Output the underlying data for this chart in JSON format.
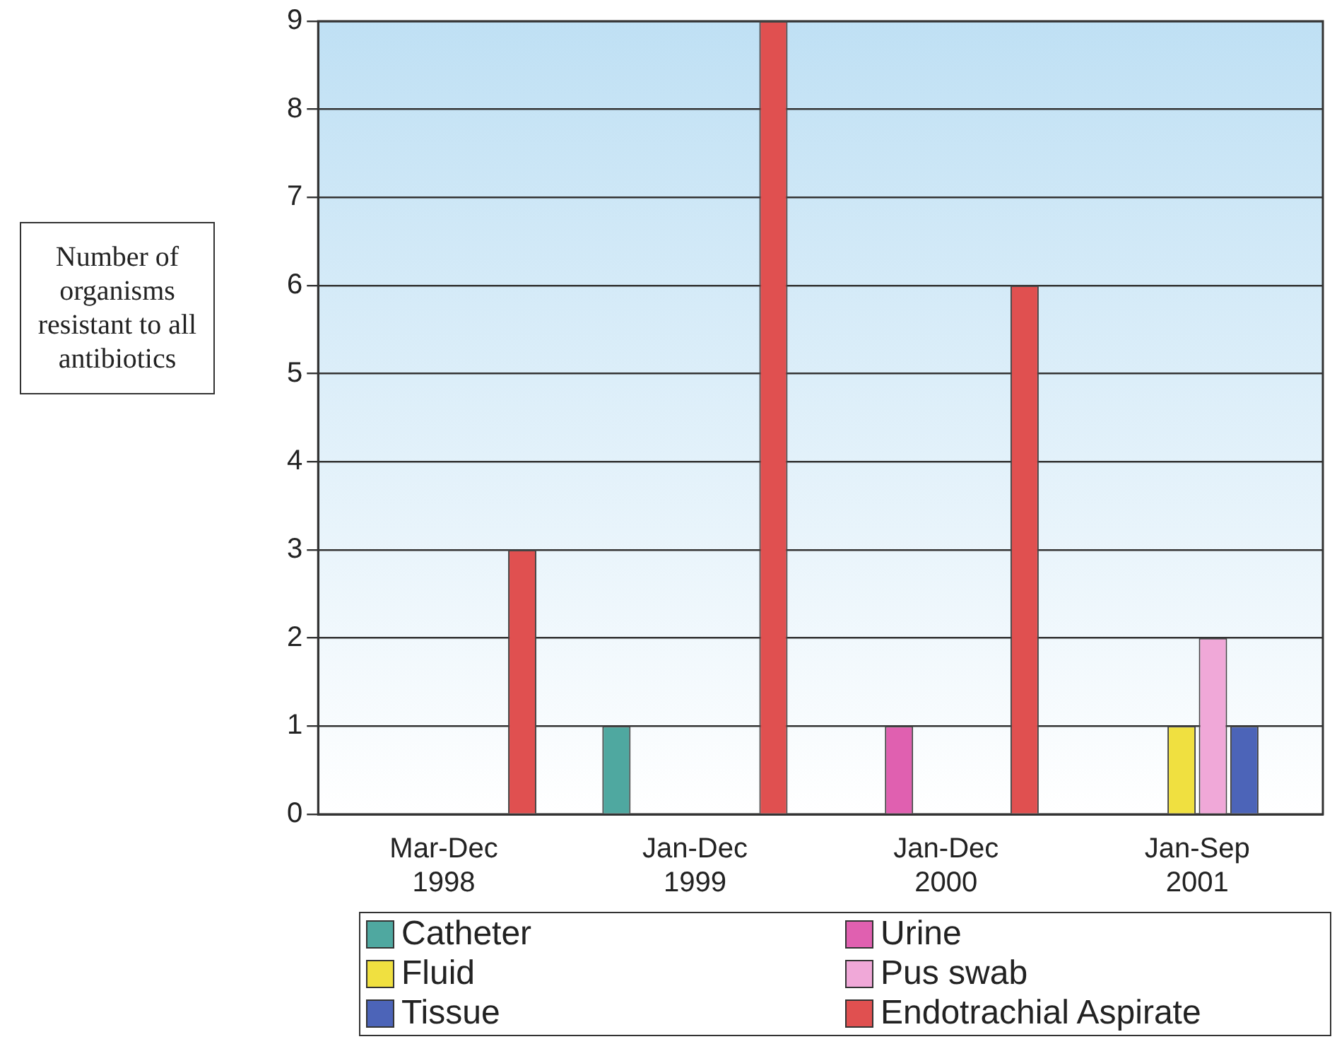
{
  "chart_data": {
    "type": "bar",
    "ylabel": "Number of organisms resistant to all antibiotics",
    "categories": [
      "Mar-Dec 1998",
      "Jan-Dec 1999",
      "Jan-Dec 2000",
      "Jan-Sep 2001"
    ],
    "series": [
      {
        "name": "Catheter",
        "color": "#4fa8a0",
        "values": [
          0,
          1,
          0,
          0
        ]
      },
      {
        "name": "Urine",
        "color": "#e060b0",
        "values": [
          0,
          0,
          1,
          0
        ]
      },
      {
        "name": "Fluid",
        "color": "#f0e040",
        "values": [
          0,
          0,
          0,
          1
        ]
      },
      {
        "name": "Pus swab",
        "color": "#f0a8d8",
        "values": [
          0,
          0,
          0,
          2
        ]
      },
      {
        "name": "Tissue",
        "color": "#4c64b8",
        "values": [
          0,
          0,
          0,
          1
        ]
      },
      {
        "name": "Endotrachial Aspirate",
        "color": "#e05050",
        "values": [
          3,
          9,
          6,
          0
        ]
      }
    ],
    "ylim": [
      0,
      9
    ],
    "yticks": [
      0,
      1,
      2,
      3,
      4,
      5,
      6,
      7,
      8,
      9
    ],
    "grid": "y",
    "legend": "bottom"
  }
}
